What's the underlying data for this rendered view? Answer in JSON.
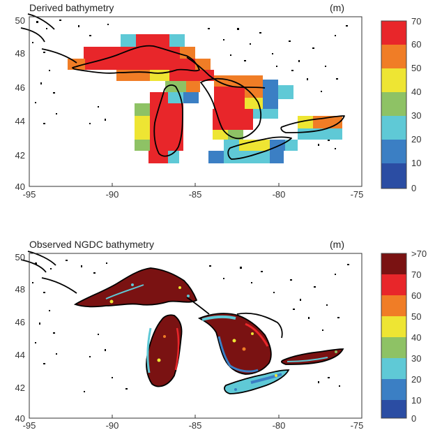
{
  "panels": [
    {
      "title": "Derived bathymetry",
      "unit": "(m)",
      "colorbar_labels": [
        "70",
        "60",
        "50",
        "40",
        "30",
        "20",
        "10",
        "0"
      ],
      "colorbar_colors": [
        "#e8262a",
        "#f07d26",
        "#eee533",
        "#8ec265",
        "#5fc9d6",
        "#3b7fc4",
        "#2b4da3"
      ]
    },
    {
      "title": "Observed NGDC bathymetry",
      "unit": "(m)",
      "colorbar_labels": [
        ">70",
        "70",
        "60",
        "50",
        "40",
        "30",
        "20",
        "10",
        "0"
      ],
      "colorbar_colors": [
        "#7a1212",
        "#e8262a",
        "#f07d26",
        "#eee533",
        "#8ec265",
        "#5fc9d6",
        "#3b7fc4",
        "#2b4da3"
      ]
    }
  ],
  "axes": {
    "x_ticks": [
      "-95",
      "-90",
      "-85",
      "-80",
      "-75"
    ],
    "y_ticks": [
      "50",
      "48",
      "46",
      "44",
      "42",
      "40"
    ],
    "xlim": [
      -95,
      -75
    ],
    "ylim": [
      40,
      50
    ]
  }
}
